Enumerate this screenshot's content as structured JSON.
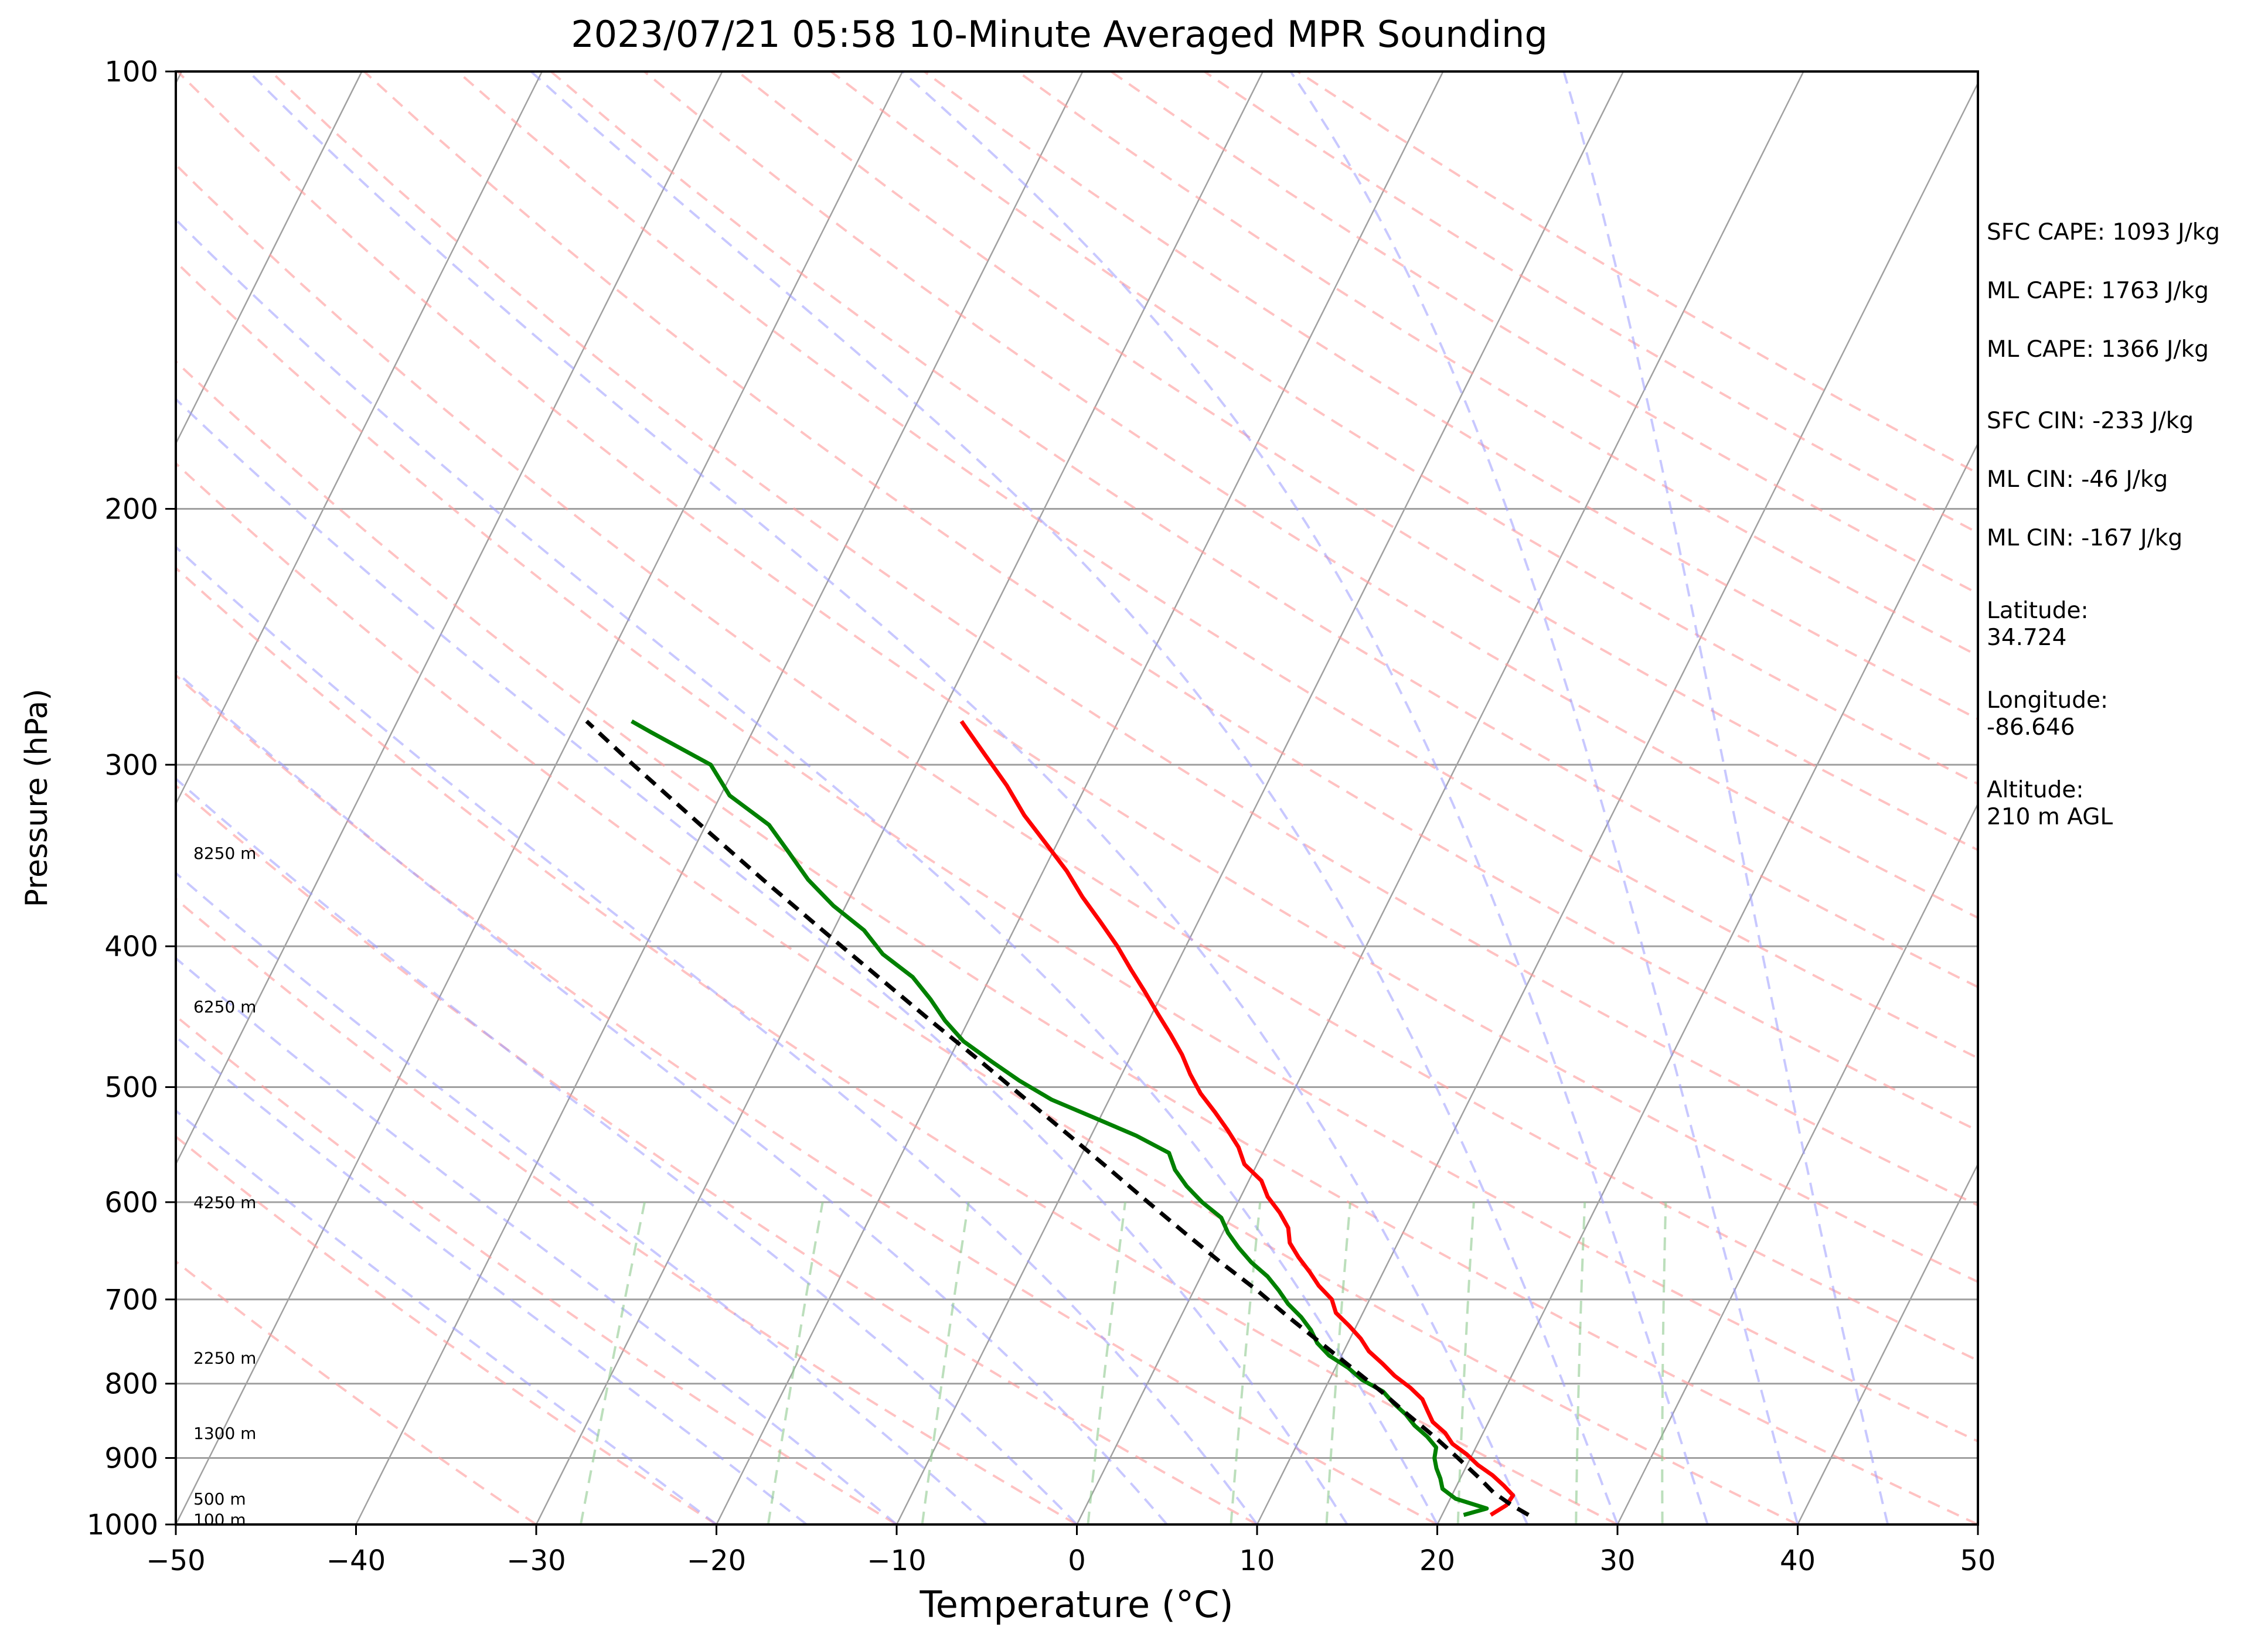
{
  "chart_data": {
    "type": "skew-t",
    "title": "2023/07/21 05:58 10-Minute Averaged MPR Sounding",
    "xlabel": "Temperature (°C)",
    "ylabel": "Pressure (hPa)",
    "xlim": [
      -50,
      50
    ],
    "ylim": [
      1000,
      100
    ],
    "x_ticks": [
      "−50",
      "−40",
      "−30",
      "−20",
      "−10",
      "0",
      "10",
      "20",
      "30",
      "40",
      "50"
    ],
    "y_ticks": [
      {
        "p": 100,
        "label": "100"
      },
      {
        "p": 200,
        "label": "200"
      },
      {
        "p": 300,
        "label": "300"
      },
      {
        "p": 400,
        "label": "400"
      },
      {
        "p": 500,
        "label": "500"
      },
      {
        "p": 600,
        "label": "600"
      },
      {
        "p": 700,
        "label": "700"
      },
      {
        "p": 800,
        "label": "800"
      },
      {
        "p": 900,
        "label": "900"
      },
      {
        "p": 1000,
        "label": "1000"
      }
    ],
    "height_labels": [
      {
        "p": 345,
        "label": "8250 m"
      },
      {
        "p": 440,
        "label": "6250 m"
      },
      {
        "p": 600,
        "label": "4250 m"
      },
      {
        "p": 768,
        "label": "2250 m"
      },
      {
        "p": 865,
        "label": "1300 m"
      },
      {
        "p": 960,
        "label": "500 m"
      },
      {
        "p": 992,
        "label": "100 m"
      }
    ],
    "series": [
      {
        "name": "temperature",
        "color": "#ff0000",
        "p": [
          985,
          970,
          955,
          940,
          925,
          910,
          895,
          880,
          865,
          850,
          835,
          820,
          805,
          790,
          775,
          760,
          745,
          730,
          715,
          700,
          685,
          670,
          655,
          640,
          625,
          610,
          595,
          580,
          565,
          550,
          535,
          520,
          505,
          490,
          475,
          460,
          445,
          430,
          415,
          400,
          385,
          370,
          355,
          340,
          325,
          310,
          295,
          280
        ],
        "t": [
          22.7,
          23.3,
          23.4,
          22.6,
          21.7,
          20.6,
          19.7,
          18.6,
          17.9,
          16.9,
          16.3,
          15.7,
          14.7,
          13.5,
          12.5,
          11.4,
          10.6,
          9.6,
          8.5,
          7.9,
          6.8,
          5.9,
          4.9,
          4.0,
          3.5,
          2.6,
          1.5,
          0.7,
          -0.7,
          -1.5,
          -2.6,
          -3.8,
          -5.1,
          -6.2,
          -7.2,
          -8.4,
          -9.7,
          -11.0,
          -12.4,
          -13.8,
          -15.4,
          -17.1,
          -18.7,
          -20.6,
          -22.6,
          -24.4,
          -26.5,
          -28.7
        ]
      },
      {
        "name": "dewpoint",
        "color": "#008000",
        "p": [
          985,
          975,
          960,
          945,
          930,
          915,
          900,
          885,
          870,
          855,
          840,
          825,
          810,
          795,
          780,
          765,
          750,
          735,
          720,
          705,
          690,
          675,
          660,
          645,
          630,
          615,
          600,
          585,
          570,
          555,
          540,
          525,
          510,
          495,
          480,
          465,
          450,
          435,
          420,
          405,
          390,
          375,
          360,
          345,
          330,
          315,
          300,
          285,
          280
        ],
        "t": [
          21.2,
          22.3,
          20.3,
          19.3,
          18.9,
          18.4,
          18.0,
          17.8,
          17.0,
          16.0,
          15.2,
          14.2,
          13.3,
          11.8,
          10.7,
          9.3,
          8.3,
          7.6,
          6.7,
          5.6,
          4.7,
          3.7,
          2.4,
          1.3,
          0.3,
          -0.5,
          -2.0,
          -3.3,
          -4.4,
          -5.2,
          -7.5,
          -10.3,
          -13.2,
          -15.5,
          -17.6,
          -19.7,
          -21.3,
          -22.7,
          -24.3,
          -26.6,
          -28.3,
          -30.7,
          -32.8,
          -34.6,
          -36.5,
          -39.5,
          -41.4,
          -45.6,
          -47.0
        ]
      },
      {
        "name": "parcel",
        "color": "#000000",
        "p": [
          985,
          970,
          950,
          930,
          900,
          870,
          840,
          810,
          780,
          750,
          720,
          690,
          660,
          630,
          600,
          570,
          540,
          510,
          480,
          450,
          420,
          390,
          360,
          330,
          300,
          280
        ],
        "t": [
          24.8,
          23.6,
          22.2,
          21.1,
          19.3,
          17.4,
          15.3,
          13.2,
          10.9,
          8.5,
          6.0,
          3.5,
          0.7,
          -2.1,
          -5.0,
          -8.0,
          -11.2,
          -14.6,
          -18.2,
          -22.1,
          -26.2,
          -30.6,
          -35.3,
          -40.3,
          -45.7,
          -49.5
        ]
      }
    ]
  },
  "info_panel": {
    "sfc_cape": "SFC CAPE: 1093 J/kg",
    "ml_cape_1": "ML CAPE: 1763 J/kg",
    "ml_cape_2": "ML CAPE: 1366 J/kg",
    "sfc_cin": "SFC CIN: -233 J/kg",
    "ml_cin_1": "ML CIN: -46 J/kg",
    "ml_cin_2": "ML CIN: -167 J/kg",
    "latitude": "Latitude:\n34.724",
    "longitude": "Longitude:\n-86.646",
    "altitude": "Altitude:\n210 m AGL"
  },
  "colors": {
    "temperature": "#ff0000",
    "dewpoint": "#008000",
    "parcel": "#000000",
    "dry_adiabats": "#ff9a9a",
    "moist_adiabats": "#9a9aff",
    "mixing_ratio": "#8fc98f",
    "isotherms": "#a0a0a0"
  }
}
